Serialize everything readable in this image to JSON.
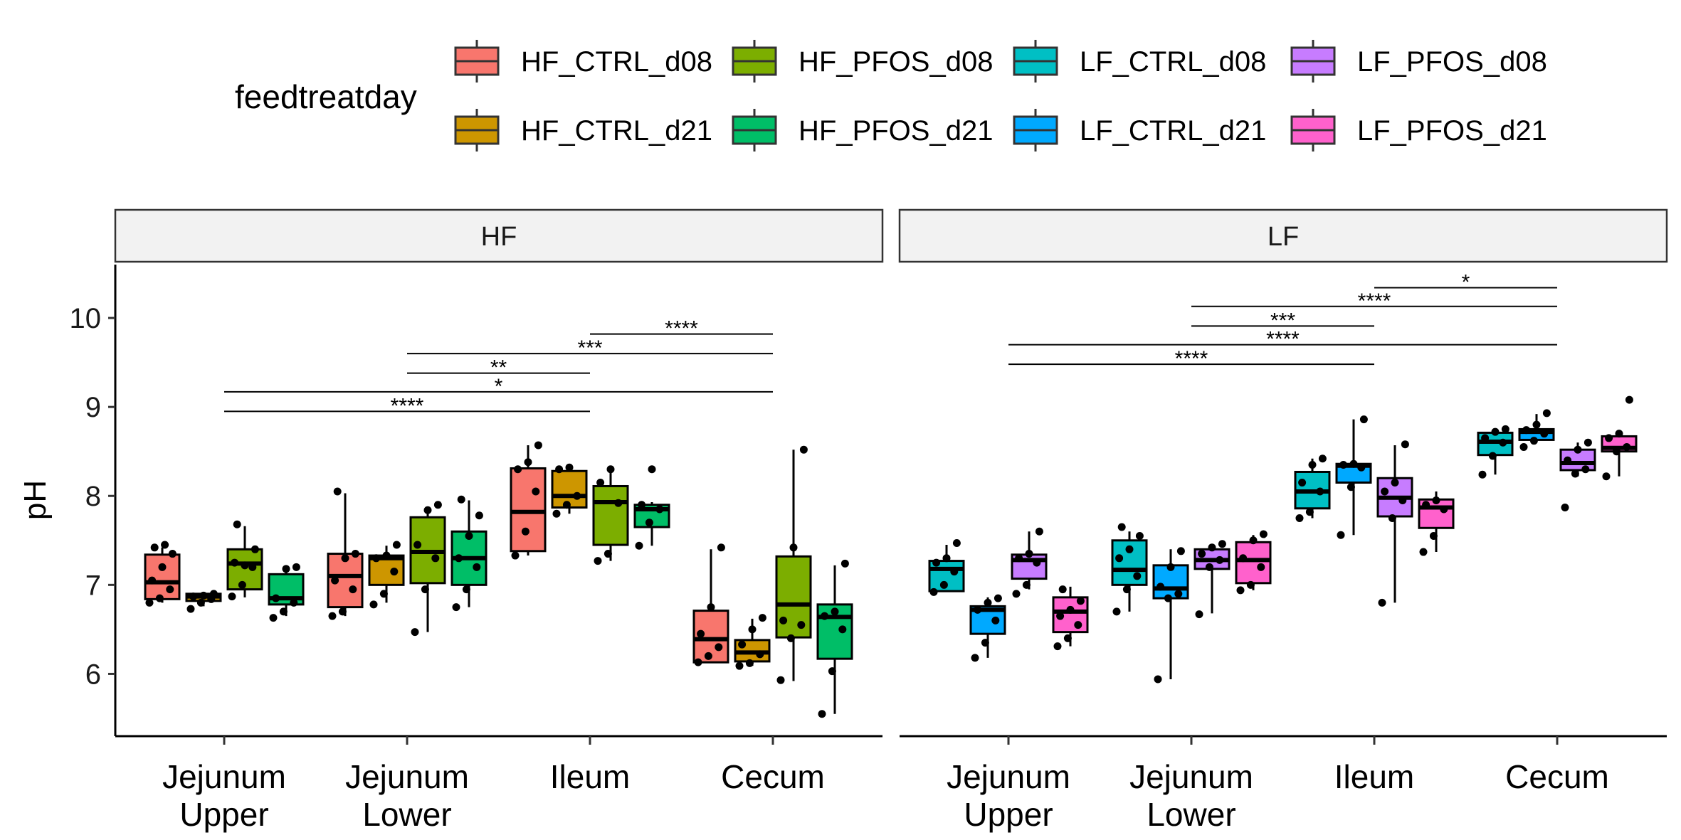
{
  "chart_data": {
    "type": "box",
    "ylabel": "pH",
    "ylim": [
      5.3,
      10.6
    ],
    "yticks": [
      6,
      7,
      8,
      9,
      10
    ],
    "legend": {
      "title": "feedtreatday",
      "position": "top",
      "entries": [
        {
          "name": "HF_CTRL_d08",
          "color": "#F8766D"
        },
        {
          "name": "HF_PFOS_d08",
          "color": "#7CAE00"
        },
        {
          "name": "LF_CTRL_d08",
          "color": "#00BFC4"
        },
        {
          "name": "LF_PFOS_d08",
          "color": "#C77CFF"
        },
        {
          "name": "HF_CTRL_d21",
          "color": "#CD9600"
        },
        {
          "name": "HF_PFOS_d21",
          "color": "#00BE67"
        },
        {
          "name": "LF_CTRL_d21",
          "color": "#00A9FF"
        },
        {
          "name": "LF_PFOS_d21",
          "color": "#FF61CC"
        }
      ]
    },
    "categories": [
      "Jejunum\nUpper",
      "Jejunum\nLower",
      "Ileum",
      "Cecum"
    ],
    "panels": [
      {
        "label": "HF",
        "groups": [
          {
            "category": 0,
            "boxes": [
              {
                "series": "HF_CTRL_d08",
                "q1": 6.84,
                "median": 7.03,
                "q3": 7.34,
                "lo": 6.8,
                "hi": 7.42,
                "points": [
                  6.8,
                  6.85,
                  6.95,
                  7.05,
                  7.2,
                  7.35,
                  7.42,
                  7.45
                ]
              },
              {
                "series": "HF_CTRL_d21",
                "q1": 6.82,
                "median": 6.87,
                "q3": 6.9,
                "lo": 6.76,
                "hi": 6.92,
                "points": [
                  6.73,
                  6.8,
                  6.84,
                  6.87,
                  6.88,
                  6.9
                ]
              },
              {
                "series": "HF_PFOS_d08",
                "q1": 6.95,
                "median": 7.24,
                "q3": 7.4,
                "lo": 6.86,
                "hi": 7.66,
                "points": [
                  6.87,
                  7.0,
                  7.2,
                  7.25,
                  7.22,
                  7.4,
                  7.68
                ]
              },
              {
                "series": "HF_PFOS_d21",
                "q1": 6.78,
                "median": 6.85,
                "q3": 7.12,
                "lo": 6.65,
                "hi": 7.2,
                "points": [
                  6.63,
                  6.7,
                  6.8,
                  6.85,
                  7.18,
                  7.2
                ]
              }
            ]
          },
          {
            "category": 1,
            "boxes": [
              {
                "series": "HF_CTRL_d08",
                "q1": 6.75,
                "median": 7.1,
                "q3": 7.35,
                "lo": 6.65,
                "hi": 8.03,
                "points": [
                  6.65,
                  6.7,
                  6.95,
                  7.05,
                  7.3,
                  7.35,
                  8.05
                ]
              },
              {
                "series": "HF_CTRL_d21",
                "q1": 7.0,
                "median": 7.3,
                "q3": 7.33,
                "lo": 6.8,
                "hi": 7.44,
                "points": [
                  6.78,
                  6.9,
                  7.15,
                  7.3,
                  7.33,
                  7.45
                ]
              },
              {
                "series": "HF_PFOS_d08",
                "q1": 7.02,
                "median": 7.37,
                "q3": 7.76,
                "lo": 6.47,
                "hi": 7.88,
                "points": [
                  6.47,
                  6.95,
                  7.3,
                  7.45,
                  7.84,
                  7.9
                ]
              },
              {
                "series": "HF_PFOS_d21",
                "q1": 7.0,
                "median": 7.3,
                "q3": 7.6,
                "lo": 6.75,
                "hi": 7.95,
                "points": [
                  6.75,
                  6.95,
                  7.2,
                  7.3,
                  7.55,
                  7.78,
                  7.96
                ]
              }
            ]
          },
          {
            "category": 2,
            "boxes": [
              {
                "series": "HF_CTRL_d08",
                "q1": 7.38,
                "median": 7.82,
                "q3": 8.31,
                "lo": 7.33,
                "hi": 8.57,
                "points": [
                  7.33,
                  7.6,
                  8.05,
                  8.3,
                  8.38,
                  8.57
                ]
              },
              {
                "series": "HF_CTRL_d21",
                "q1": 7.87,
                "median": 8.0,
                "q3": 8.28,
                "lo": 7.8,
                "hi": 8.33,
                "points": [
                  7.8,
                  7.9,
                  8.0,
                  8.3,
                  8.32
                ]
              },
              {
                "series": "HF_PFOS_d08",
                "q1": 7.45,
                "median": 7.93,
                "q3": 8.11,
                "lo": 7.27,
                "hi": 8.32,
                "points": [
                  7.27,
                  7.35,
                  7.92,
                  8.15,
                  8.3
                ]
              },
              {
                "series": "HF_PFOS_d21",
                "q1": 7.65,
                "median": 7.85,
                "q3": 7.9,
                "lo": 7.44,
                "hi": 7.93,
                "points": [
                  7.44,
                  7.7,
                  7.85,
                  7.9,
                  8.3
                ]
              }
            ]
          },
          {
            "category": 3,
            "boxes": [
              {
                "series": "HF_CTRL_d08",
                "q1": 6.13,
                "median": 6.39,
                "q3": 6.71,
                "lo": 6.12,
                "hi": 7.4,
                "points": [
                  6.13,
                  6.2,
                  6.3,
                  6.45,
                  6.75,
                  7.42
                ]
              },
              {
                "series": "HF_CTRL_d21",
                "q1": 6.14,
                "median": 6.24,
                "q3": 6.38,
                "lo": 6.09,
                "hi": 6.62,
                "points": [
                  6.09,
                  6.12,
                  6.22,
                  6.33,
                  6.5,
                  6.63
                ]
              },
              {
                "series": "HF_PFOS_d08",
                "q1": 6.41,
                "median": 6.78,
                "q3": 7.32,
                "lo": 5.92,
                "hi": 8.52,
                "points": [
                  5.93,
                  6.4,
                  6.55,
                  6.6,
                  7.42,
                  8.52
                ]
              },
              {
                "series": "HF_PFOS_d21",
                "q1": 6.17,
                "median": 6.64,
                "q3": 6.78,
                "lo": 5.55,
                "hi": 7.22,
                "points": [
                  5.55,
                  6.03,
                  6.5,
                  6.65,
                  6.7,
                  7.24
                ]
              }
            ]
          }
        ],
        "significance": [
          {
            "from": 0,
            "to": 2,
            "y": 8.95,
            "label": "****"
          },
          {
            "from": 0,
            "to": 3,
            "y": 9.17,
            "label": "*"
          },
          {
            "from": 1,
            "to": 2,
            "y": 9.38,
            "label": "**"
          },
          {
            "from": 1,
            "to": 3,
            "y": 9.6,
            "label": "***"
          },
          {
            "from": 2,
            "to": 3,
            "y": 9.82,
            "label": "****"
          }
        ]
      },
      {
        "label": "LF",
        "groups": [
          {
            "category": 0,
            "boxes": [
              {
                "series": "LF_CTRL_d08",
                "q1": 6.93,
                "median": 7.18,
                "q3": 7.27,
                "lo": 6.92,
                "hi": 7.45,
                "points": [
                  6.92,
                  7.0,
                  7.15,
                  7.25,
                  7.3,
                  7.47
                ]
              },
              {
                "series": "LF_CTRL_d21",
                "q1": 6.45,
                "median": 6.72,
                "q3": 6.76,
                "lo": 6.18,
                "hi": 6.86,
                "points": [
                  6.18,
                  6.35,
                  6.6,
                  6.72,
                  6.8,
                  6.85
                ]
              },
              {
                "series": "LF_PFOS_d08",
                "q1": 7.07,
                "median": 7.28,
                "q3": 7.34,
                "lo": 6.95,
                "hi": 7.6,
                "points": [
                  6.9,
                  7.0,
                  7.25,
                  7.3,
                  7.35,
                  7.6
                ]
              },
              {
                "series": "LF_PFOS_d21",
                "q1": 6.47,
                "median": 6.7,
                "q3": 6.86,
                "lo": 6.31,
                "hi": 6.98,
                "points": [
                  6.31,
                  6.4,
                  6.55,
                  6.65,
                  6.72,
                  6.82,
                  6.95
                ]
              }
            ]
          },
          {
            "category": 1,
            "boxes": [
              {
                "series": "LF_CTRL_d08",
                "q1": 7.0,
                "median": 7.17,
                "q3": 7.5,
                "lo": 6.7,
                "hi": 7.6,
                "points": [
                  6.7,
                  6.95,
                  7.1,
                  7.3,
                  7.4,
                  7.55,
                  7.65
                ]
              },
              {
                "series": "LF_CTRL_d21",
                "q1": 6.85,
                "median": 6.96,
                "q3": 7.22,
                "lo": 5.94,
                "hi": 7.4,
                "points": [
                  5.94,
                  6.85,
                  6.9,
                  6.98,
                  7.2,
                  7.38
                ]
              },
              {
                "series": "LF_PFOS_d08",
                "q1": 7.18,
                "median": 7.28,
                "q3": 7.4,
                "lo": 6.68,
                "hi": 7.45,
                "points": [
                  6.67,
                  7.2,
                  7.28,
                  7.35,
                  7.42,
                  7.46
                ]
              },
              {
                "series": "LF_PFOS_d21",
                "q1": 7.02,
                "median": 7.28,
                "q3": 7.48,
                "lo": 6.94,
                "hi": 7.56,
                "points": [
                  6.94,
                  7.0,
                  7.2,
                  7.3,
                  7.5,
                  7.57
                ]
              }
            ]
          },
          {
            "category": 2,
            "boxes": [
              {
                "series": "LF_CTRL_d08",
                "q1": 7.86,
                "median": 8.05,
                "q3": 8.27,
                "lo": 7.75,
                "hi": 8.42,
                "points": [
                  7.75,
                  7.82,
                  8.05,
                  8.15,
                  8.35,
                  8.42
                ]
              },
              {
                "series": "LF_CTRL_d21",
                "q1": 8.15,
                "median": 8.34,
                "q3": 8.36,
                "lo": 7.56,
                "hi": 8.86,
                "points": [
                  7.56,
                  8.1,
                  8.32,
                  8.35,
                  8.36,
                  8.86
                ]
              },
              {
                "series": "LF_PFOS_d08",
                "q1": 7.77,
                "median": 7.98,
                "q3": 8.2,
                "lo": 6.8,
                "hi": 8.57,
                "points": [
                  6.8,
                  7.75,
                  7.95,
                  8.05,
                  8.15,
                  8.58
                ]
              },
              {
                "series": "LF_PFOS_d21",
                "q1": 7.64,
                "median": 7.87,
                "q3": 7.96,
                "lo": 7.37,
                "hi": 8.05,
                "points": [
                  7.37,
                  7.55,
                  7.85,
                  7.9,
                  7.95
                ]
              }
            ]
          },
          {
            "category": 3,
            "boxes": [
              {
                "series": "LF_CTRL_d08",
                "q1": 8.46,
                "median": 8.61,
                "q3": 8.71,
                "lo": 8.24,
                "hi": 8.76,
                "points": [
                  8.24,
                  8.45,
                  8.6,
                  8.65,
                  8.72,
                  8.75
                ]
              },
              {
                "series": "LF_CTRL_d21",
                "q1": 8.63,
                "median": 8.72,
                "q3": 8.75,
                "lo": 8.6,
                "hi": 8.92,
                "points": [
                  8.55,
                  8.62,
                  8.7,
                  8.74,
                  8.8,
                  8.93
                ]
              },
              {
                "series": "LF_PFOS_d08",
                "q1": 8.29,
                "median": 8.37,
                "q3": 8.52,
                "lo": 8.22,
                "hi": 8.6,
                "points": [
                  7.87,
                  8.25,
                  8.3,
                  8.4,
                  8.52,
                  8.6
                ]
              },
              {
                "series": "LF_PFOS_d21",
                "q1": 8.5,
                "median": 8.54,
                "q3": 8.67,
                "lo": 8.22,
                "hi": 8.72,
                "points": [
                  8.22,
                  8.5,
                  8.55,
                  8.65,
                  8.7,
                  9.08
                ]
              }
            ]
          }
        ],
        "significance": [
          {
            "from": 0,
            "to": 2,
            "y": 9.48,
            "label": "****"
          },
          {
            "from": 0,
            "to": 3,
            "y": 9.7,
            "label": "****"
          },
          {
            "from": 1,
            "to": 2,
            "y": 9.91,
            "label": "***"
          },
          {
            "from": 1,
            "to": 3,
            "y": 10.13,
            "label": "****"
          },
          {
            "from": 2,
            "to": 3,
            "y": 10.34,
            "label": "*"
          }
        ]
      }
    ]
  }
}
